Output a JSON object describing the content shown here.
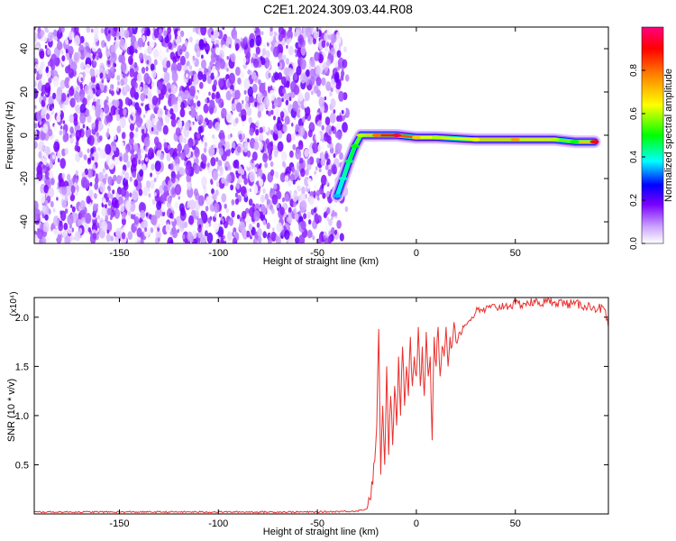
{
  "title": "C2E1.2024.309.03.44.R08",
  "chart_data": [
    {
      "type": "heatmap",
      "title": "",
      "xlabel": "Height of straight line (km)",
      "ylabel": "Frequency (Hz)",
      "xlim": [
        -193,
        97
      ],
      "ylim": [
        -50,
        50
      ],
      "xticks": [
        -150,
        -100,
        -50,
        0,
        50
      ],
      "yticks": [
        -40,
        -20,
        0,
        20,
        40
      ],
      "grid": false,
      "colorbar": {
        "label": "Normalized spectral amplitude",
        "range": [
          0,
          1
        ],
        "ticks": [
          "0.0",
          "0.2",
          "0.4",
          "0.6",
          "0.8"
        ],
        "colors": [
          "#ffffff",
          "#c9a0ff",
          "#7a00ff",
          "#0000ff",
          "#00ffff",
          "#00ff00",
          "#ffff00",
          "#ff8000",
          "#ff0000",
          "#ff0080"
        ]
      },
      "noise_region": {
        "x_range": [
          -193,
          -37
        ],
        "y_range": [
          -50,
          50
        ],
        "amplitude": [
          0.0,
          0.2
        ]
      },
      "ridge": [
        {
          "x": -40,
          "y": -28,
          "amp": 0.35
        },
        {
          "x": -37,
          "y": -20,
          "amp": 0.4
        },
        {
          "x": -34,
          "y": -12,
          "amp": 0.45
        },
        {
          "x": -31,
          "y": -5,
          "amp": 0.5
        },
        {
          "x": -28,
          "y": 0,
          "amp": 0.6
        },
        {
          "x": -20,
          "y": 0,
          "amp": 0.8
        },
        {
          "x": -10,
          "y": 0,
          "amp": 0.95
        },
        {
          "x": 0,
          "y": -1,
          "amp": 0.7
        },
        {
          "x": 10,
          "y": -1,
          "amp": 0.6
        },
        {
          "x": 30,
          "y": -2,
          "amp": 0.65
        },
        {
          "x": 50,
          "y": -2,
          "amp": 0.75
        },
        {
          "x": 70,
          "y": -2,
          "amp": 0.6
        },
        {
          "x": 80,
          "y": -3,
          "amp": 0.5
        },
        {
          "x": 90,
          "y": -3,
          "amp": 0.9
        }
      ]
    },
    {
      "type": "line",
      "title": "",
      "xlabel": "Height of straight line (km)",
      "ylabel": "SNR (10 * v/v)",
      "y_multiplier": "(x10⁴)",
      "xlim": [
        -193,
        97
      ],
      "ylim": [
        0,
        2.2
      ],
      "xticks": [
        -150,
        -100,
        -50,
        0,
        50
      ],
      "yticks": [
        "0.5",
        "1.0",
        "1.5",
        "2.0"
      ],
      "grid": false,
      "color": "#e8312f",
      "series": [
        {
          "x": [
            -193,
            -150,
            -100,
            -50,
            -30,
            -25,
            -22,
            -20,
            -19,
            -18,
            -17,
            -16,
            -15,
            -14,
            -13,
            -12,
            -11,
            -10,
            -9,
            -8,
            -7,
            -6,
            -5,
            -4,
            -3,
            -2,
            -1,
            0,
            1,
            2,
            3,
            4,
            5,
            6,
            7,
            8,
            9,
            10,
            11,
            12,
            13,
            14,
            15,
            16,
            17,
            18,
            19,
            20,
            22,
            24,
            26,
            28,
            30,
            35,
            40,
            45,
            50,
            55,
            60,
            65,
            70,
            75,
            80,
            85,
            90,
            95,
            97
          ],
          "values": [
            0.02,
            0.02,
            0.02,
            0.02,
            0.03,
            0.05,
            0.3,
            0.9,
            1.88,
            0.4,
            1.1,
            0.5,
            1.5,
            0.6,
            1.2,
            0.7,
            1.3,
            0.9,
            1.6,
            1.0,
            1.7,
            1.1,
            1.5,
            1.2,
            1.8,
            1.3,
            1.6,
            1.4,
            1.9,
            1.3,
            1.7,
            1.2,
            1.85,
            1.4,
            1.6,
            0.75,
            1.8,
            1.5,
            1.9,
            1.4,
            1.7,
            1.6,
            1.9,
            1.5,
            1.8,
            1.7,
            1.95,
            1.75,
            1.85,
            1.9,
            1.95,
            2.0,
            2.05,
            2.08,
            2.1,
            2.12,
            2.13,
            2.14,
            2.15,
            2.15,
            2.16,
            2.14,
            2.13,
            2.12,
            2.1,
            2.08,
            1.9
          ]
        }
      ]
    }
  ]
}
